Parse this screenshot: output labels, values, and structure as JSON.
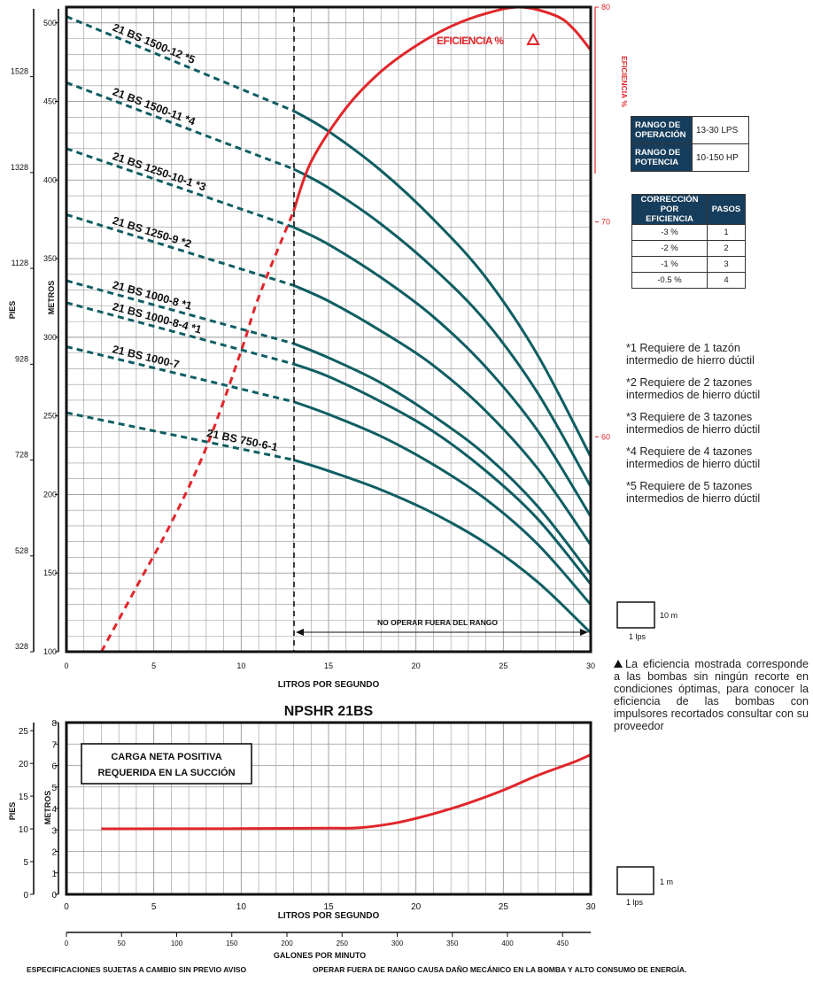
{
  "colors": {
    "curve": "#0f5e63",
    "efficiency": "#e0262b",
    "grid": "#999999",
    "table_header": "#163d5c"
  },
  "main_chart": {
    "x_tick_labels": [
      "0",
      "5",
      "10",
      "15",
      "20",
      "25",
      "30"
    ],
    "metros_tick_labels": [
      "500",
      "450",
      "400",
      "350",
      "300",
      "250",
      "200",
      "150",
      "100"
    ],
    "pies_tick_labels": [
      "1528",
      "1328",
      "1128",
      "928",
      "728",
      "528",
      "328"
    ],
    "efficiency_tick_labels": [
      "80",
      "70",
      "60"
    ],
    "x_axis_label": "LITROS POR SEGUNDO",
    "y_axis_label_metros": "METROS",
    "y_axis_label_pies": "PIES",
    "efficiency_axis_label": "EFICIENCIA %",
    "efficiency_legend": "EFICIENCIA %",
    "range_label": "NO OPERAR FUERA DEL RANGO",
    "scale_box_label": "10 m",
    "scale_box_sub": "1 lps"
  },
  "tables": {
    "rango": [
      {
        "label": "RANGO DE OPERACIÓN",
        "value": "13-30 LPS"
      },
      {
        "label": "RANGO DE POTENCIA",
        "value": "10-150 HP"
      }
    ],
    "correccion_headers": [
      "CORRECCIÓN POR EFICIENCIA",
      "PASOS"
    ],
    "correccion_rows": [
      [
        "-3 %",
        "1"
      ],
      [
        "-2 %",
        "2"
      ],
      [
        "-1 %",
        "3"
      ],
      [
        "-0.5 %",
        "4"
      ]
    ]
  },
  "notes": [
    [
      "*1 Requiere de 1 tazón",
      "intermedio de hierro dúctil"
    ],
    [
      "*2 Requiere de 2 tazones",
      "intermedios de hierro dúctil"
    ],
    [
      "*3 Requiere de 3 tazones",
      "intermedios de hierro dúctil"
    ],
    [
      "*4 Requiere de 4 tazones",
      "intermedios de hierro dúctil"
    ],
    [
      "*5 Requiere de 5 tazones",
      "intermedios de hierro dúctil"
    ]
  ],
  "disclaimer": "La eficiencia mostrada corresponde a las bombas sin ningún recorte en condiciones óptimas, para conocer la eficiencia de las bombas con impulsores recortados consultar con su proveedor",
  "npshr_chart": {
    "title": "NPSHR 21BS",
    "box_label_1": "CARGA NETA POSITIVA",
    "box_label_2": "REQUERIDA EN LA SUCCIÓN",
    "x_tick_labels": [
      "0",
      "5",
      "10",
      "15",
      "20",
      "25",
      "30"
    ],
    "metros_tick_labels": [
      "8",
      "7",
      "6",
      "5",
      "4",
      "3",
      "2",
      "1",
      "0"
    ],
    "pies_tick_labels": [
      "25",
      "20",
      "15",
      "10",
      "5",
      "0"
    ],
    "x_axis_label": "LITROS POR SEGUNDO",
    "y_axis_label_metros": "METROS",
    "y_axis_label_pies": "PIES",
    "gpm_tick_labels": [
      "0",
      "50",
      "100",
      "150",
      "200",
      "250",
      "300",
      "350",
      "400",
      "450"
    ],
    "gpm_axis_label": "GALONES POR MINUTO",
    "scale_box_label": "1 m",
    "scale_box_sub": "1 lps"
  },
  "footer": {
    "left": "ESPECIFICACIONES SUJETAS A CAMBIO SIN PREVIO AVISO",
    "right": "OPERAR FUERA DE RANGO CAUSA DAÑO MECÁNICO EN LA BOMBA Y ALTO CONSUMO DE ENERGÍA."
  },
  "chart_data": [
    {
      "type": "line",
      "title": "",
      "xlabel": "LITROS POR SEGUNDO",
      "ylabel": "METROS",
      "xlim": [
        0,
        30
      ],
      "ylim": [
        100,
        510
      ],
      "y2label": "EFICIENCIA %",
      "y2lim": [
        50,
        80
      ],
      "operating_range_lps": [
        13,
        30
      ],
      "series": [
        {
          "name": "21 BS 1500-12 *5",
          "x": [
            0,
            13,
            15,
            18,
            21,
            24,
            27,
            30
          ],
          "y": [
            504,
            444,
            431,
            406,
            375,
            338,
            288,
            224
          ],
          "axis": "metros"
        },
        {
          "name": "21 BS 1500-11 *4",
          "x": [
            0,
            13,
            15,
            18,
            21,
            24,
            27,
            30
          ],
          "y": [
            462,
            407,
            395,
            372,
            344,
            310,
            264,
            205
          ],
          "axis": "metros"
        },
        {
          "name": "21 BS 1250-10-1 *3",
          "x": [
            0,
            13,
            15,
            18,
            21,
            24,
            27,
            30
          ],
          "y": [
            420,
            370,
            359,
            338,
            313,
            281,
            240,
            186
          ],
          "axis": "metros"
        },
        {
          "name": "21 BS 1250-9 *2",
          "x": [
            0,
            13,
            15,
            18,
            21,
            24,
            27,
            30
          ],
          "y": [
            378,
            333,
            323,
            304,
            282,
            253,
            216,
            168
          ],
          "axis": "metros"
        },
        {
          "name": "21 BS 1000-8 *1",
          "x": [
            0,
            13,
            15,
            18,
            21,
            24,
            27,
            30
          ],
          "y": [
            336,
            296,
            287,
            271,
            250,
            225,
            192,
            149
          ],
          "axis": "metros"
        },
        {
          "name": "21 BS 1000-8-4 *1",
          "x": [
            0,
            13,
            15,
            18,
            21,
            24,
            27,
            30
          ],
          "y": [
            322,
            283,
            275,
            259,
            240,
            215,
            184,
            143
          ],
          "axis": "metros"
        },
        {
          "name": "21 BS 1000-7",
          "x": [
            0,
            13,
            15,
            18,
            21,
            24,
            27,
            30
          ],
          "y": [
            294,
            259,
            251,
            237,
            219,
            197,
            168,
            130
          ],
          "axis": "metros"
        },
        {
          "name": "21 BS 750-6-1",
          "x": [
            0,
            13,
            15,
            18,
            21,
            24,
            27,
            30
          ],
          "y": [
            252,
            222,
            215,
            203,
            188,
            169,
            144,
            112
          ],
          "axis": "metros"
        },
        {
          "name": "EFICIENCIA %",
          "x": [
            2,
            4,
            6,
            8,
            10,
            11,
            13,
            14,
            16,
            18,
            20,
            22,
            24,
            26,
            28,
            29,
            30
          ],
          "y": [
            50,
            53,
            56,
            59.5,
            64,
            66.5,
            70.5,
            72.8,
            75.3,
            77,
            78.2,
            79.1,
            79.7,
            80,
            79.6,
            79,
            78
          ],
          "axis": "eficiencia"
        }
      ]
    },
    {
      "type": "line",
      "title": "NPSHR 21BS",
      "xlabel": "LITROS POR SEGUNDO",
      "ylabel": "METROS",
      "xlim": [
        0,
        30
      ],
      "ylim": [
        0,
        8
      ],
      "series": [
        {
          "name": "NPSHR",
          "x": [
            2,
            10,
            15,
            16.8,
            19,
            21,
            23,
            25,
            27,
            29,
            30
          ],
          "y": [
            3.05,
            3.06,
            3.08,
            3.1,
            3.35,
            3.75,
            4.25,
            4.85,
            5.55,
            6.15,
            6.5
          ]
        }
      ]
    }
  ]
}
